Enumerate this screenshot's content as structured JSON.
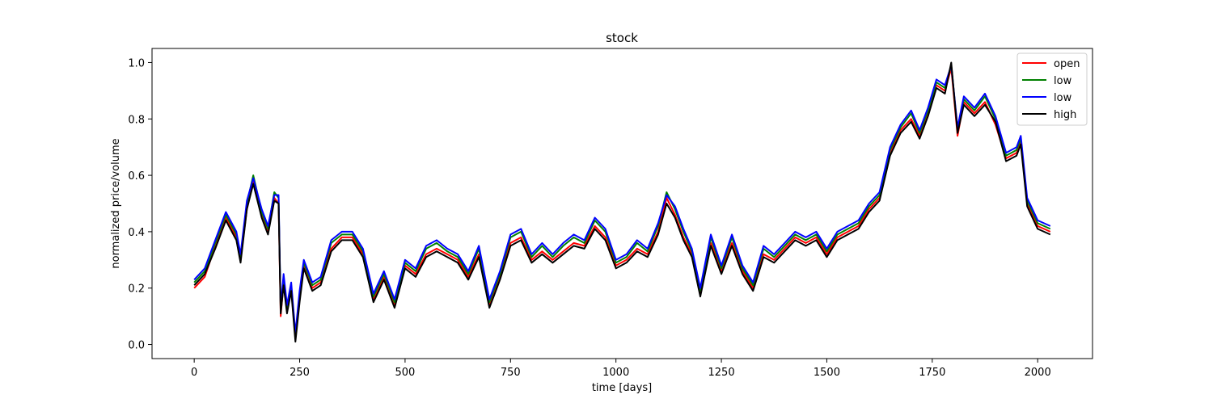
{
  "chart_data": {
    "type": "line",
    "title": "stock",
    "xlabel": "time [days]",
    "ylabel": "normalized price/volume",
    "xlim": [
      -100,
      2130
    ],
    "ylim": [
      -0.05,
      1.05
    ],
    "x_ticks": [
      0,
      250,
      500,
      750,
      1000,
      1250,
      1500,
      1750,
      2000
    ],
    "x_tick_labels": [
      "0",
      "250",
      "500",
      "750",
      "1000",
      "1250",
      "1500",
      "1750",
      "2000"
    ],
    "y_ticks": [
      0.0,
      0.2,
      0.4,
      0.6,
      0.8,
      1.0
    ],
    "y_tick_labels": [
      "0.0",
      "0.2",
      "0.4",
      "0.6",
      "0.8",
      "1.0"
    ],
    "grid": false,
    "legend_position": "top-right",
    "x": [
      0,
      25,
      50,
      75,
      100,
      110,
      125,
      140,
      160,
      175,
      190,
      200,
      205,
      212,
      220,
      230,
      240,
      250,
      260,
      280,
      300,
      325,
      350,
      375,
      400,
      425,
      450,
      475,
      500,
      525,
      550,
      575,
      600,
      625,
      650,
      675,
      700,
      725,
      750,
      775,
      800,
      825,
      850,
      875,
      900,
      925,
      950,
      975,
      1000,
      1025,
      1050,
      1075,
      1100,
      1120,
      1140,
      1160,
      1180,
      1200,
      1225,
      1250,
      1275,
      1300,
      1325,
      1350,
      1375,
      1400,
      1425,
      1450,
      1475,
      1500,
      1525,
      1550,
      1575,
      1600,
      1625,
      1650,
      1675,
      1700,
      1720,
      1740,
      1760,
      1780,
      1795,
      1810,
      1825,
      1850,
      1875,
      1900,
      1925,
      1950,
      1960,
      1975,
      2000,
      2030
    ],
    "series": [
      {
        "name": "open",
        "color": "#ff0000",
        "values": [
          0.2,
          0.24,
          0.35,
          0.45,
          0.38,
          0.3,
          0.48,
          0.58,
          0.46,
          0.4,
          0.52,
          0.5,
          0.1,
          0.22,
          0.12,
          0.2,
          0.02,
          0.16,
          0.28,
          0.2,
          0.22,
          0.34,
          0.38,
          0.38,
          0.32,
          0.16,
          0.24,
          0.14,
          0.28,
          0.25,
          0.32,
          0.34,
          0.32,
          0.3,
          0.24,
          0.32,
          0.14,
          0.24,
          0.36,
          0.38,
          0.3,
          0.33,
          0.3,
          0.33,
          0.36,
          0.35,
          0.42,
          0.38,
          0.28,
          0.3,
          0.34,
          0.32,
          0.4,
          0.52,
          0.46,
          0.38,
          0.32,
          0.18,
          0.36,
          0.26,
          0.36,
          0.26,
          0.2,
          0.32,
          0.3,
          0.34,
          0.38,
          0.36,
          0.38,
          0.32,
          0.38,
          0.4,
          0.42,
          0.48,
          0.52,
          0.68,
          0.76,
          0.8,
          0.74,
          0.82,
          0.92,
          0.9,
          0.98,
          0.74,
          0.86,
          0.82,
          0.86,
          0.78,
          0.66,
          0.68,
          0.72,
          0.5,
          0.42,
          0.4
        ]
      },
      {
        "name": "low",
        "color": "#008000",
        "values": [
          0.22,
          0.26,
          0.36,
          0.46,
          0.39,
          0.31,
          0.5,
          0.6,
          0.47,
          0.41,
          0.54,
          0.52,
          0.12,
          0.24,
          0.13,
          0.21,
          0.03,
          0.18,
          0.29,
          0.21,
          0.23,
          0.36,
          0.39,
          0.39,
          0.33,
          0.17,
          0.25,
          0.15,
          0.29,
          0.26,
          0.34,
          0.36,
          0.33,
          0.31,
          0.25,
          0.34,
          0.15,
          0.25,
          0.38,
          0.4,
          0.31,
          0.35,
          0.31,
          0.35,
          0.38,
          0.36,
          0.44,
          0.4,
          0.29,
          0.31,
          0.36,
          0.33,
          0.42,
          0.54,
          0.48,
          0.4,
          0.33,
          0.19,
          0.38,
          0.27,
          0.38,
          0.27,
          0.21,
          0.34,
          0.31,
          0.35,
          0.39,
          0.37,
          0.39,
          0.33,
          0.39,
          0.41,
          0.43,
          0.49,
          0.53,
          0.69,
          0.77,
          0.82,
          0.75,
          0.83,
          0.93,
          0.91,
          0.99,
          0.76,
          0.87,
          0.83,
          0.88,
          0.8,
          0.67,
          0.69,
          0.73,
          0.51,
          0.43,
          0.41
        ]
      },
      {
        "name": "low",
        "color": "#0000ff",
        "values": [
          0.23,
          0.27,
          0.37,
          0.47,
          0.4,
          0.32,
          0.51,
          0.59,
          0.48,
          0.42,
          0.53,
          0.53,
          0.13,
          0.25,
          0.14,
          0.22,
          0.04,
          0.19,
          0.3,
          0.22,
          0.24,
          0.37,
          0.4,
          0.4,
          0.34,
          0.18,
          0.26,
          0.16,
          0.3,
          0.27,
          0.35,
          0.37,
          0.34,
          0.32,
          0.26,
          0.35,
          0.16,
          0.26,
          0.39,
          0.41,
          0.32,
          0.36,
          0.32,
          0.36,
          0.39,
          0.37,
          0.45,
          0.41,
          0.3,
          0.32,
          0.37,
          0.34,
          0.43,
          0.53,
          0.49,
          0.41,
          0.34,
          0.2,
          0.39,
          0.28,
          0.39,
          0.28,
          0.22,
          0.35,
          0.32,
          0.36,
          0.4,
          0.38,
          0.4,
          0.34,
          0.4,
          0.42,
          0.44,
          0.5,
          0.54,
          0.7,
          0.78,
          0.83,
          0.76,
          0.84,
          0.94,
          0.92,
          0.99,
          0.77,
          0.88,
          0.84,
          0.89,
          0.81,
          0.68,
          0.7,
          0.74,
          0.52,
          0.44,
          0.42
        ]
      },
      {
        "name": "high",
        "color": "#000000",
        "values": [
          0.21,
          0.25,
          0.34,
          0.44,
          0.37,
          0.29,
          0.48,
          0.57,
          0.45,
          0.39,
          0.51,
          0.5,
          0.11,
          0.21,
          0.11,
          0.19,
          0.01,
          0.15,
          0.27,
          0.19,
          0.21,
          0.33,
          0.37,
          0.37,
          0.31,
          0.15,
          0.23,
          0.13,
          0.27,
          0.24,
          0.31,
          0.33,
          0.31,
          0.29,
          0.23,
          0.31,
          0.13,
          0.23,
          0.35,
          0.37,
          0.29,
          0.32,
          0.29,
          0.32,
          0.35,
          0.34,
          0.41,
          0.37,
          0.27,
          0.29,
          0.33,
          0.31,
          0.39,
          0.5,
          0.45,
          0.37,
          0.31,
          0.17,
          0.35,
          0.25,
          0.35,
          0.25,
          0.19,
          0.31,
          0.29,
          0.33,
          0.37,
          0.35,
          0.37,
          0.31,
          0.37,
          0.39,
          0.41,
          0.47,
          0.51,
          0.67,
          0.75,
          0.79,
          0.73,
          0.81,
          0.91,
          0.89,
          1.0,
          0.75,
          0.85,
          0.81,
          0.85,
          0.79,
          0.65,
          0.67,
          0.71,
          0.49,
          0.41,
          0.39
        ]
      }
    ]
  }
}
